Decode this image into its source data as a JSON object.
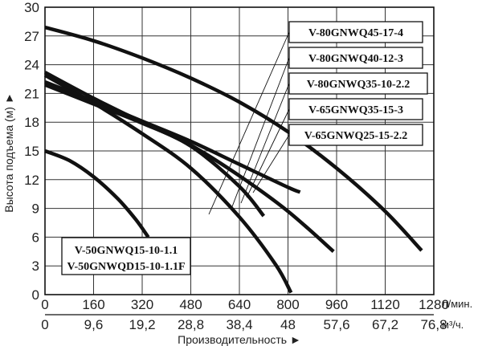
{
  "chart_data": {
    "type": "line",
    "xlabel": "Производительность ►",
    "ylabel": "Высота подъема (м) ►",
    "x_unit_primary": "л/мин.",
    "x_unit_secondary": "м³/ч.",
    "xlim": [
      0,
      1280
    ],
    "ylim": [
      0,
      30
    ],
    "x_ticks_primary": [
      "0",
      "160",
      "320",
      "480",
      "640",
      "800",
      "960",
      "1120",
      "1280"
    ],
    "x_ticks_secondary": [
      "0",
      "9,6",
      "19,2",
      "28,8",
      "38,4",
      "48",
      "57,6",
      "67,2",
      "76,8"
    ],
    "y_ticks": [
      "0",
      "3",
      "6",
      "9",
      "12",
      "15",
      "18",
      "21",
      "24",
      "27",
      "30"
    ],
    "grid": true,
    "series": [
      {
        "name": "V-80GNWQ45-17-4",
        "x": [
          0,
          160,
          320,
          480,
          640,
          800,
          960,
          1120,
          1240
        ],
        "y": [
          27.9,
          26.5,
          24.7,
          22.6,
          20.1,
          17.0,
          13.2,
          8.7,
          4.6
        ]
      },
      {
        "name": "V-80GNWQ40-12-3",
        "x": [
          0,
          160,
          320,
          480,
          640,
          800,
          950
        ],
        "y": [
          23.2,
          20.5,
          18.0,
          15.6,
          12.4,
          8.7,
          4.5
        ]
      },
      {
        "name": "V-80GNWQ35-10-2.2",
        "x": [
          0,
          160,
          320,
          480,
          640,
          760,
          810
        ],
        "y": [
          22.9,
          20.0,
          16.8,
          13.2,
          8.1,
          3.1,
          0.2
        ]
      },
      {
        "name": "V-65GNWQ35-15-3",
        "x": [
          0,
          160,
          320,
          480,
          640,
          800,
          840
        ],
        "y": [
          22.2,
          20.2,
          18.1,
          16.0,
          13.6,
          11.2,
          10.7
        ]
      },
      {
        "name": "V-65GNWQ25-15-2.2",
        "x": [
          0,
          160,
          320,
          480,
          640,
          720
        ],
        "y": [
          21.9,
          19.9,
          17.9,
          15.5,
          11.3,
          8.2
        ]
      },
      {
        "name": "V-50GNWQ15-10-1.1 / V-50GNWQD15-10-1.1F",
        "x": [
          0,
          80,
          160,
          240,
          300,
          340
        ],
        "y": [
          15.0,
          14.0,
          12.3,
          10.0,
          7.8,
          6.0
        ]
      }
    ]
  }
}
